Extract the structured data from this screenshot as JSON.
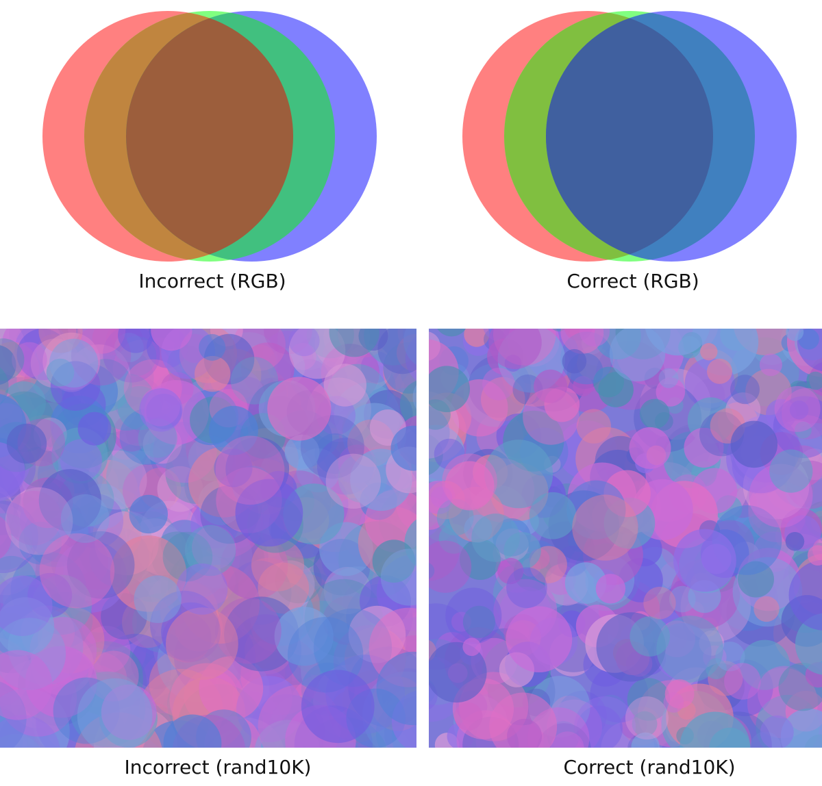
{
  "captions": {
    "incorrect_rgb": "Incorrect (RGB)",
    "correct_rgb": "Correct (RGB)",
    "incorrect_rand": "Incorrect (rand10K)",
    "correct_rand": "Correct (rand10K)"
  },
  "colors": {
    "red_circle": "#ff8080",
    "green_circle": "#80ff80",
    "blue_circle": "#8080ff",
    "incorrect_red_green": "#c0853f",
    "incorrect_center": "#9c5e3c",
    "incorrect_green_blue": "#41c07f",
    "correct_red_green": "#80bf40",
    "correct_center": "#40609f",
    "correct_green_blue": "#4080bf",
    "rand_palette": [
      "#6e5ce0",
      "#c86bd9",
      "#4f7fd8",
      "#e06fc4",
      "#5fa0c8",
      "#8f6fe8",
      "#d89ad8",
      "#5a60c8",
      "#e07fa0",
      "#7aa0e0",
      "#b05ac8",
      "#4a8fb0"
    ]
  }
}
